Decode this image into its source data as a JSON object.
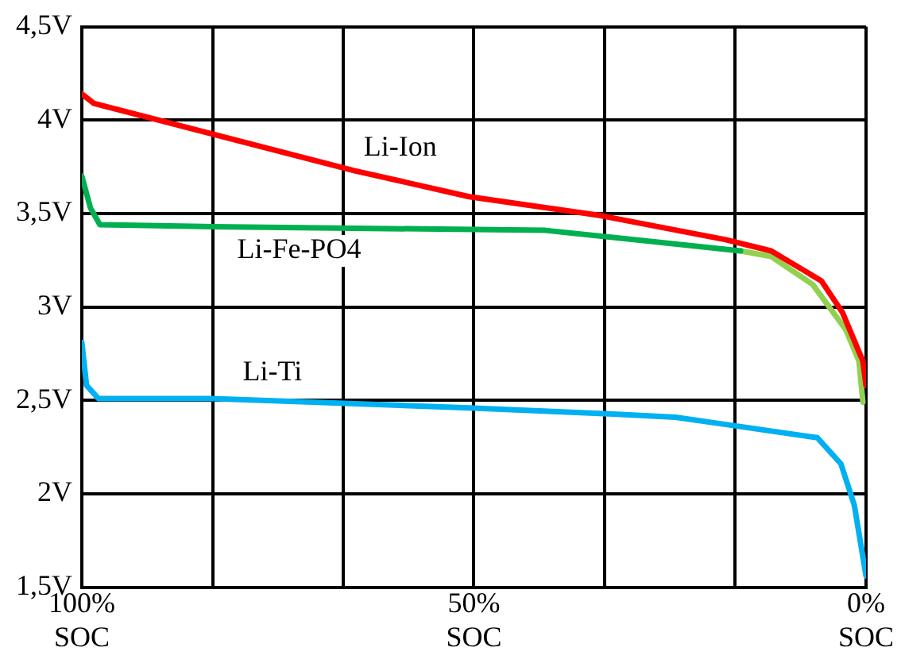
{
  "chart_data": {
    "type": "line",
    "xlim": [
      100,
      0
    ],
    "ylim": [
      1.5,
      4.5
    ],
    "xticks": [
      {
        "value": 100,
        "label": "100%\nSOC"
      },
      {
        "value": 83.3,
        "label": null
      },
      {
        "value": 66.7,
        "label": null
      },
      {
        "value": 50,
        "label": "50%\nSOC"
      },
      {
        "value": 33.3,
        "label": null
      },
      {
        "value": 16.7,
        "label": null
      },
      {
        "value": 0,
        "label": "0%\nSOC"
      }
    ],
    "yticks": [
      {
        "value": 1.5,
        "label": "1,5V"
      },
      {
        "value": 2,
        "label": "2V"
      },
      {
        "value": 2.5,
        "label": "2,5V"
      },
      {
        "value": 3,
        "label": "3V"
      },
      {
        "value": 3.5,
        "label": "3,5V"
      },
      {
        "value": 4,
        "label": "4V"
      },
      {
        "value": 4.5,
        "label": "4,5V"
      }
    ],
    "grid": true,
    "legend": false,
    "marker": "none",
    "line_style": "solid",
    "series": [
      {
        "color": "#ff0000",
        "x": [
          100,
          98.5,
          65.3,
          50.6,
          34,
          17.9,
          12.1,
          5.7,
          3,
          0.4,
          0
        ],
        "values": [
          4.14,
          4.09,
          3.73,
          3.59,
          3.49,
          3.36,
          3.3,
          3.14,
          2.97,
          2.71,
          2.58
        ]
      },
      {
        "color": "#00b050",
        "x": [
          100,
          98.9,
          97.7,
          83.4,
          40.9,
          16
        ],
        "values": [
          3.7,
          3.53,
          3.44,
          3.43,
          3.41,
          3.3
        ]
      },
      {
        "color": "#92d050",
        "x": [
          16,
          12.1,
          6.8,
          2.6,
          0.9,
          0.4
        ],
        "values": [
          3.3,
          3.27,
          3.12,
          2.88,
          2.71,
          2.49
        ]
      },
      {
        "color": "#00b0f0",
        "x": [
          100,
          99.4,
          97.9,
          83.4,
          50.6,
          34,
          24.3,
          17.7,
          6.2,
          3.2,
          1.5,
          0
        ],
        "values": [
          2.81,
          2.58,
          2.51,
          2.51,
          2.46,
          2.43,
          2.41,
          2.37,
          2.3,
          2.16,
          1.94,
          1.56
        ]
      }
    ],
    "annotations": [
      "Li-Ion",
      "Li-Fe-PO4",
      "Li-Ti"
    ]
  }
}
